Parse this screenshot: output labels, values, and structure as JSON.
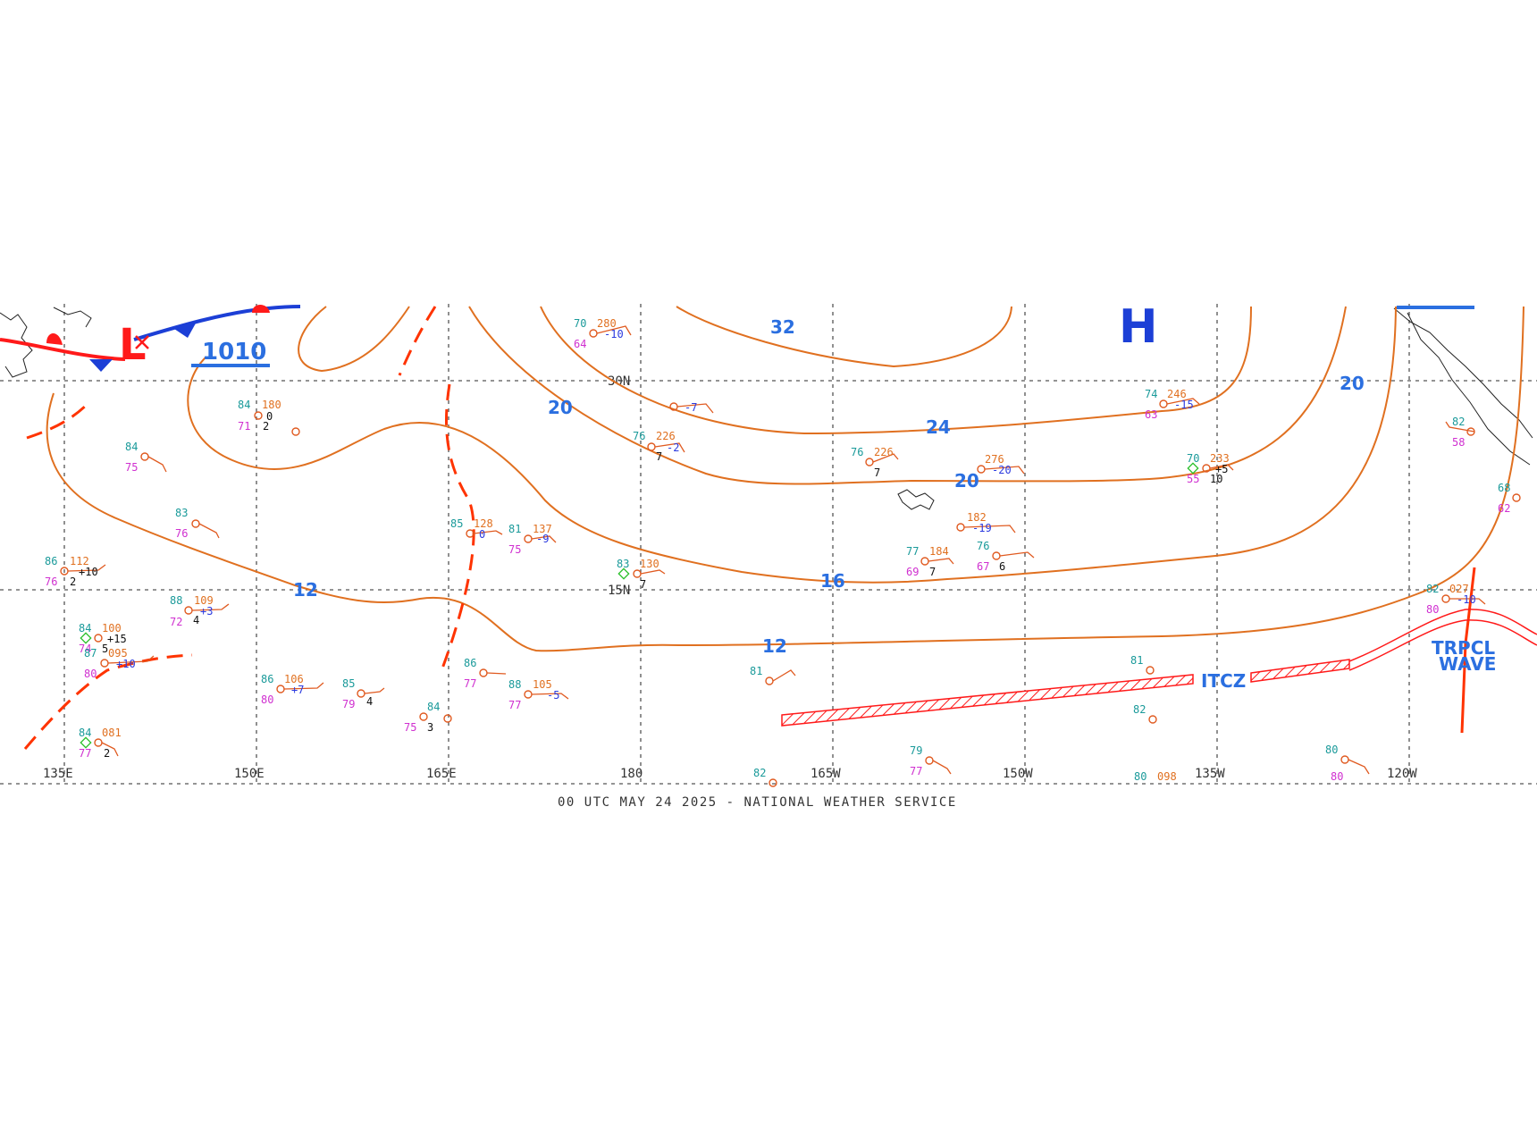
{
  "footer": "00 UTC MAY 24 2025 - NATIONAL WEATHER SERVICE",
  "longitudes": [
    "135E",
    "150E",
    "165E",
    "180",
    "165W",
    "150W",
    "135W",
    "120W"
  ],
  "latitudes": [
    "30N",
    "15N"
  ],
  "isobar_labels": [
    "32",
    "24",
    "20",
    "20",
    "20",
    "16",
    "12",
    "12"
  ],
  "pressure_label": "1010",
  "high_label": "H",
  "low_label": "L",
  "itcz_label": "ITCZ",
  "wave_label": [
    "TRPCL",
    "WAVE"
  ],
  "colors": {
    "isobar": "#e07020",
    "front_cold": "#1c3fd6",
    "front_warm": "#ff1a1a",
    "trough": "#ff3300",
    "label_blue": "#2b6fe0"
  },
  "stations": [
    {
      "temp": "70",
      "press": "280",
      "dew": "64",
      "tend": "-10"
    },
    {
      "temp": "",
      "press": "",
      "dew": "",
      "tend": "-7"
    },
    {
      "temp": "76",
      "press": "226",
      "dew": "",
      "tend": "-2",
      "extra": "7"
    },
    {
      "temp": "84",
      "press": "180",
      "dew": "71",
      "tend": "0",
      "extra": "2"
    },
    {
      "temp": "84",
      "press": "",
      "dew": "75",
      "tend": ""
    },
    {
      "temp": "83",
      "press": "",
      "dew": "76",
      "tend": ""
    },
    {
      "temp": "86",
      "press": "112",
      "dew": "76",
      "tend": "+10",
      "extra": "2"
    },
    {
      "temp": "88",
      "press": "109",
      "dew": "72",
      "tend": "+3",
      "extra": "4"
    },
    {
      "temp": "84",
      "press": "100",
      "dew": "74",
      "tend": "+15",
      "extra": "5"
    },
    {
      "temp": "87",
      "press": "095",
      "dew": "80",
      "tend": "+10"
    },
    {
      "temp": "84",
      "press": "081",
      "dew": "77",
      "tend": "",
      "extra": "2"
    },
    {
      "temp": "86",
      "press": "106",
      "dew": "80",
      "tend": "+7"
    },
    {
      "temp": "85",
      "press": "",
      "dew": "79",
      "tend": "",
      "extra": "4"
    },
    {
      "temp": "85",
      "press": "128",
      "dew": "69",
      "tend": "0"
    },
    {
      "temp": "81",
      "press": "137",
      "dew": "75",
      "tend": "-9"
    },
    {
      "temp": "83",
      "press": "130",
      "dew": "",
      "tend": "",
      "extra": "7"
    },
    {
      "temp": "86",
      "press": "",
      "dew": "77",
      "tend": ""
    },
    {
      "temp": "88",
      "press": "105",
      "dew": "77",
      "tend": "-5"
    },
    {
      "temp": "84",
      "press": "",
      "dew": "75",
      "tend": "",
      "extra": "3"
    },
    {
      "temp": "81",
      "press": "",
      "dew": "",
      "tend": ""
    },
    {
      "temp": "76",
      "press": "226",
      "dew": "",
      "tend": "",
      "extra": "7"
    },
    {
      "temp": "",
      "press": "276",
      "dew": "",
      "tend": "-20"
    },
    {
      "temp": "",
      "press": "182",
      "dew": "",
      "tend": "-19"
    },
    {
      "temp": "77",
      "press": "184",
      "dew": "69",
      "tend": "",
      "extra": "7"
    },
    {
      "temp": "76",
      "press": "",
      "dew": "67",
      "tend": "",
      "extra": "6"
    },
    {
      "temp": "74",
      "press": "246",
      "dew": "63",
      "tend": "-15"
    },
    {
      "temp": "70",
      "press": "233",
      "dew": "55",
      "tend": "+5",
      "extra": "10"
    },
    {
      "temp": "81",
      "press": "",
      "dew": "",
      "tend": ""
    },
    {
      "temp": "82",
      "press": "",
      "dew": "",
      "tend": ""
    },
    {
      "temp": "79",
      "press": "",
      "dew": "77",
      "tend": ""
    },
    {
      "temp": "82",
      "press": "",
      "dew": "",
      "tend": ""
    },
    {
      "temp": "80",
      "press": "098",
      "dew": "",
      "tend": ""
    },
    {
      "temp": "80",
      "press": "",
      "dew": "80",
      "tend": ""
    },
    {
      "temp": "82",
      "press": "027",
      "dew": "80",
      "tend": "-10"
    },
    {
      "temp": "82",
      "press": "",
      "dew": "58",
      "tend": ""
    },
    {
      "temp": "68",
      "press": "",
      "dew": "62",
      "tend": ""
    }
  ]
}
